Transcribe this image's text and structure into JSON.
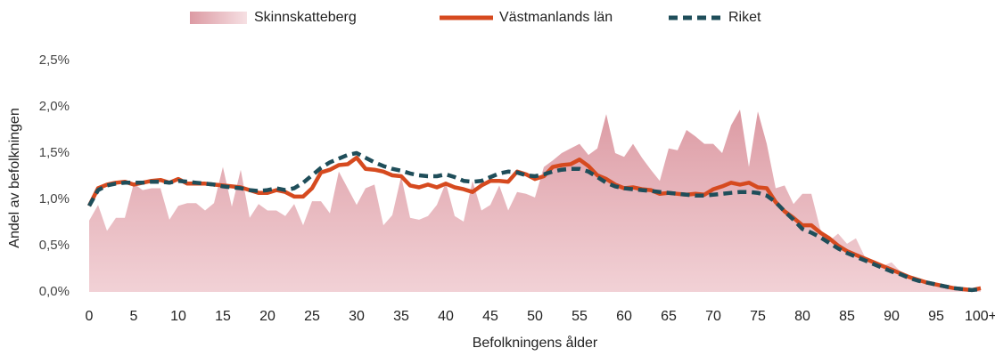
{
  "chart_data": {
    "type": "line",
    "xlabel": "Befolkningens ålder",
    "ylabel": "Andel av befolkningen",
    "categories": [
      "0",
      null,
      null,
      null,
      null,
      "5",
      null,
      null,
      null,
      null,
      "10",
      null,
      null,
      null,
      null,
      "15",
      null,
      null,
      null,
      null,
      "20",
      null,
      null,
      null,
      null,
      "25",
      null,
      null,
      null,
      null,
      "30",
      null,
      null,
      null,
      null,
      "35",
      null,
      null,
      null,
      null,
      "40",
      null,
      null,
      null,
      null,
      "45",
      null,
      null,
      null,
      null,
      "50",
      null,
      null,
      null,
      null,
      "55",
      null,
      null,
      null,
      null,
      "60",
      null,
      null,
      null,
      null,
      "65",
      null,
      null,
      null,
      null,
      "70",
      null,
      null,
      null,
      null,
      "75",
      null,
      null,
      null,
      null,
      "80",
      null,
      null,
      null,
      null,
      "85",
      null,
      null,
      null,
      null,
      "90",
      null,
      null,
      null,
      null,
      "95",
      null,
      null,
      null,
      null,
      "100+"
    ],
    "ylim": [
      0,
      2.5
    ],
    "yticks": [
      {
        "value": 0,
        "label": "0,0%"
      },
      {
        "value": 0.5,
        "label": "0,5%"
      },
      {
        "value": 1,
        "label": "1,0%"
      },
      {
        "value": 1.5,
        "label": "1,5%"
      },
      {
        "value": 2,
        "label": "2,0%"
      },
      {
        "value": 2.5,
        "label": "2,5%"
      }
    ],
    "grid": false,
    "legend": "top",
    "series": [
      {
        "name": "Skinnskatteberg",
        "kind": "area",
        "color": "#dc9aa3",
        "values": [
          0.77,
          0.94,
          0.66,
          0.8,
          0.8,
          1.17,
          1.1,
          1.12,
          1.12,
          0.78,
          0.93,
          0.96,
          0.96,
          0.88,
          0.96,
          1.35,
          0.92,
          1.32,
          0.8,
          0.95,
          0.88,
          0.88,
          0.82,
          0.95,
          0.72,
          0.98,
          0.98,
          0.85,
          1.3,
          1.12,
          0.94,
          1.12,
          1.16,
          0.72,
          0.83,
          1.25,
          0.8,
          0.78,
          0.82,
          0.94,
          1.18,
          0.82,
          0.76,
          1.2,
          0.88,
          0.94,
          1.15,
          0.88,
          1.08,
          1.06,
          1.02,
          1.35,
          1.42,
          1.5,
          1.55,
          1.6,
          1.48,
          1.55,
          1.92,
          1.5,
          1.46,
          1.6,
          1.45,
          1.32,
          1.2,
          1.55,
          1.53,
          1.75,
          1.68,
          1.6,
          1.6,
          1.5,
          1.8,
          1.97,
          1.35,
          1.95,
          1.6,
          1.12,
          1.15,
          0.95,
          1.06,
          1.06,
          0.68,
          0.55,
          0.63,
          0.52,
          0.58,
          0.38,
          0.32,
          0.28,
          0.32,
          0.22,
          0.18,
          0.15,
          0.12,
          0.1,
          0.08,
          0.05,
          0.04,
          0.03,
          0.06
        ]
      },
      {
        "name": "Västmanlands län",
        "kind": "line",
        "dashed": false,
        "color": "#d64a1f",
        "values": [
          0.93,
          1.12,
          1.16,
          1.18,
          1.19,
          1.16,
          1.18,
          1.2,
          1.21,
          1.18,
          1.22,
          1.17,
          1.17,
          1.17,
          1.16,
          1.15,
          1.14,
          1.13,
          1.1,
          1.07,
          1.07,
          1.1,
          1.08,
          1.03,
          1.03,
          1.12,
          1.29,
          1.32,
          1.37,
          1.38,
          1.45,
          1.33,
          1.32,
          1.3,
          1.26,
          1.25,
          1.15,
          1.13,
          1.16,
          1.13,
          1.17,
          1.13,
          1.11,
          1.08,
          1.15,
          1.2,
          1.2,
          1.19,
          1.3,
          1.27,
          1.22,
          1.25,
          1.35,
          1.37,
          1.38,
          1.43,
          1.36,
          1.26,
          1.22,
          1.16,
          1.12,
          1.13,
          1.11,
          1.1,
          1.06,
          1.07,
          1.06,
          1.05,
          1.06,
          1.05,
          1.11,
          1.14,
          1.18,
          1.16,
          1.18,
          1.13,
          1.12,
          0.97,
          0.87,
          0.8,
          0.72,
          0.72,
          0.64,
          0.58,
          0.5,
          0.44,
          0.4,
          0.36,
          0.32,
          0.28,
          0.24,
          0.2,
          0.16,
          0.13,
          0.1,
          0.08,
          0.06,
          0.04,
          0.03,
          0.02,
          0.04
        ]
      },
      {
        "name": "Riket",
        "kind": "line",
        "dashed": true,
        "color": "#1f4e5a",
        "values": [
          0.93,
          1.1,
          1.15,
          1.17,
          1.18,
          1.18,
          1.18,
          1.19,
          1.19,
          1.18,
          1.2,
          1.19,
          1.18,
          1.17,
          1.16,
          1.14,
          1.13,
          1.12,
          1.1,
          1.09,
          1.1,
          1.12,
          1.1,
          1.12,
          1.18,
          1.26,
          1.34,
          1.4,
          1.44,
          1.48,
          1.5,
          1.45,
          1.4,
          1.36,
          1.33,
          1.31,
          1.28,
          1.26,
          1.25,
          1.25,
          1.27,
          1.24,
          1.2,
          1.19,
          1.2,
          1.24,
          1.28,
          1.3,
          1.29,
          1.26,
          1.25,
          1.27,
          1.3,
          1.32,
          1.33,
          1.33,
          1.3,
          1.24,
          1.18,
          1.14,
          1.12,
          1.11,
          1.1,
          1.09,
          1.08,
          1.07,
          1.06,
          1.05,
          1.04,
          1.04,
          1.05,
          1.06,
          1.07,
          1.08,
          1.08,
          1.07,
          1.04,
          0.97,
          0.87,
          0.78,
          0.68,
          0.64,
          0.59,
          0.53,
          0.47,
          0.42,
          0.38,
          0.34,
          0.3,
          0.26,
          0.22,
          0.19,
          0.15,
          0.12,
          0.1,
          0.08,
          0.06,
          0.04,
          0.03,
          0.02,
          0.03
        ]
      }
    ]
  }
}
